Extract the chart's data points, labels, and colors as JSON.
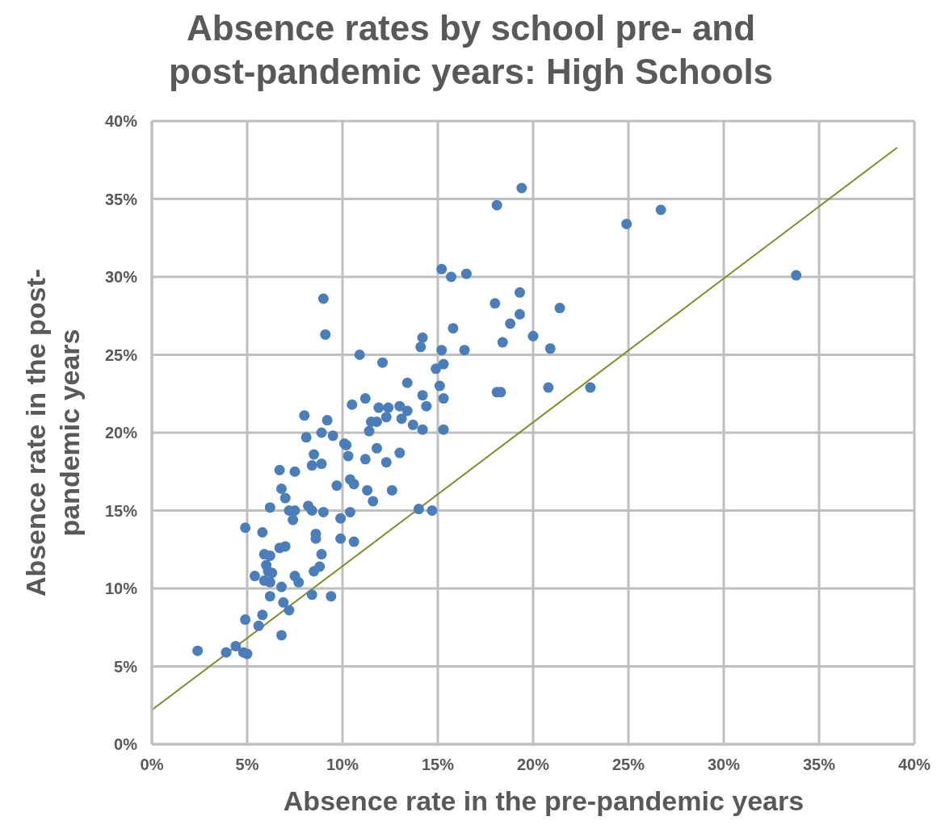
{
  "chart_data": {
    "type": "scatter",
    "title": "Absence rates by school pre- and post-pandemic years: High Schools",
    "xlabel": "Absence rate in the pre-pandemic years",
    "ylabel": "Absence rate in the post-pandemic years",
    "xlim": [
      0,
      40
    ],
    "ylim": [
      0,
      40
    ],
    "xticks": [
      {
        "value": 0,
        "label": "0%"
      },
      {
        "value": 5,
        "label": "5%"
      },
      {
        "value": 10,
        "label": "10%"
      },
      {
        "value": 15,
        "label": "15%"
      },
      {
        "value": 20,
        "label": "20%"
      },
      {
        "value": 25,
        "label": "25%"
      },
      {
        "value": 30,
        "label": "30%"
      },
      {
        "value": 35,
        "label": "35%"
      },
      {
        "value": 40,
        "label": "40%"
      }
    ],
    "yticks": [
      {
        "value": 0,
        "label": "0%"
      },
      {
        "value": 5,
        "label": "5%"
      },
      {
        "value": 10,
        "label": "10%"
      },
      {
        "value": 15,
        "label": "15%"
      },
      {
        "value": 20,
        "label": "20%"
      },
      {
        "value": 25,
        "label": "25%"
      },
      {
        "value": 30,
        "label": "30%"
      },
      {
        "value": 35,
        "label": "35%"
      },
      {
        "value": 40,
        "label": "40%"
      }
    ],
    "grid": true,
    "marker": "circle",
    "series": [
      {
        "color": "#4a7ebb",
        "x": [
          19.4,
          18.1,
          24.9,
          26.7,
          33.8,
          19.3,
          18.0,
          19.3,
          21.4,
          18.8,
          20.0,
          18.4,
          20.9,
          18.1,
          18.3,
          20.8,
          23.0,
          15.2,
          15.7,
          16.5,
          15.8,
          14.2,
          14.1,
          15.2,
          16.4,
          15.3,
          14.9,
          15.1,
          14.2,
          14.4,
          15.3,
          14.2,
          15.3,
          13.4,
          12.1,
          10.9,
          9.0,
          9.1,
          8.0,
          9.2,
          10.5,
          11.2,
          11.9,
          12.4,
          13.0,
          13.4,
          12.3,
          13.1,
          13.7,
          11.5,
          11.8,
          11.4,
          8.1,
          8.9,
          9.5,
          10.1,
          10.2,
          10.3,
          11.2,
          11.8,
          12.3,
          13.0,
          8.5,
          8.4,
          8.9,
          6.7,
          7.5,
          9.7,
          10.4,
          10.6,
          11.3,
          12.6,
          11.6,
          6.8,
          7.0,
          6.2,
          7.2,
          7.5,
          7.4,
          8.2,
          8.4,
          9.0,
          9.9,
          10.4,
          14.0,
          14.7,
          4.9,
          5.8,
          8.6,
          8.6,
          9.9,
          10.6,
          6.7,
          7.0,
          5.9,
          6.2,
          8.9,
          6.0,
          6.1,
          6.3,
          8.8,
          8.5,
          5.4,
          7.5,
          7.7,
          5.9,
          6.2,
          6.8,
          6.2,
          8.4,
          9.4,
          6.9,
          7.2,
          5.8,
          4.9,
          5.6,
          6.8,
          2.4,
          3.9,
          4.4,
          4.8,
          5.0
        ],
        "values": [
          35.7,
          34.6,
          33.4,
          34.3,
          30.1,
          29.0,
          28.3,
          27.6,
          28.0,
          27.0,
          26.2,
          25.8,
          25.4,
          22.6,
          22.6,
          22.9,
          22.9,
          30.5,
          30.0,
          30.2,
          26.7,
          26.1,
          25.5,
          25.3,
          25.3,
          24.4,
          24.1,
          23.0,
          22.4,
          21.7,
          22.2,
          20.2,
          20.2,
          23.2,
          24.5,
          25.0,
          28.6,
          26.3,
          21.1,
          20.8,
          21.8,
          22.2,
          21.6,
          21.6,
          21.7,
          21.4,
          21.0,
          20.9,
          20.5,
          20.7,
          20.7,
          20.1,
          19.7,
          20.0,
          19.8,
          19.3,
          19.2,
          18.5,
          18.3,
          19.0,
          18.1,
          18.7,
          18.6,
          17.9,
          18.0,
          17.6,
          17.5,
          16.6,
          17.0,
          16.7,
          16.3,
          16.3,
          15.6,
          16.4,
          15.8,
          15.2,
          15.0,
          15.0,
          14.4,
          15.3,
          15.0,
          14.9,
          14.5,
          14.9,
          15.1,
          15.0,
          13.9,
          13.6,
          13.5,
          13.2,
          13.2,
          13.0,
          12.6,
          12.7,
          12.2,
          12.1,
          12.2,
          11.5,
          11.1,
          11.0,
          11.4,
          11.1,
          10.8,
          10.8,
          10.4,
          10.5,
          10.4,
          10.1,
          9.5,
          9.6,
          9.5,
          9.1,
          8.6,
          8.3,
          8.0,
          7.6,
          7.0,
          6.0,
          5.9,
          6.3,
          5.9,
          5.8
        ]
      },
      {
        "type": "line",
        "color": "#7f8c2a",
        "marker": "none",
        "line_style": "solid",
        "x": [
          0,
          39.1
        ],
        "values": [
          2.2,
          38.3
        ]
      }
    ]
  }
}
